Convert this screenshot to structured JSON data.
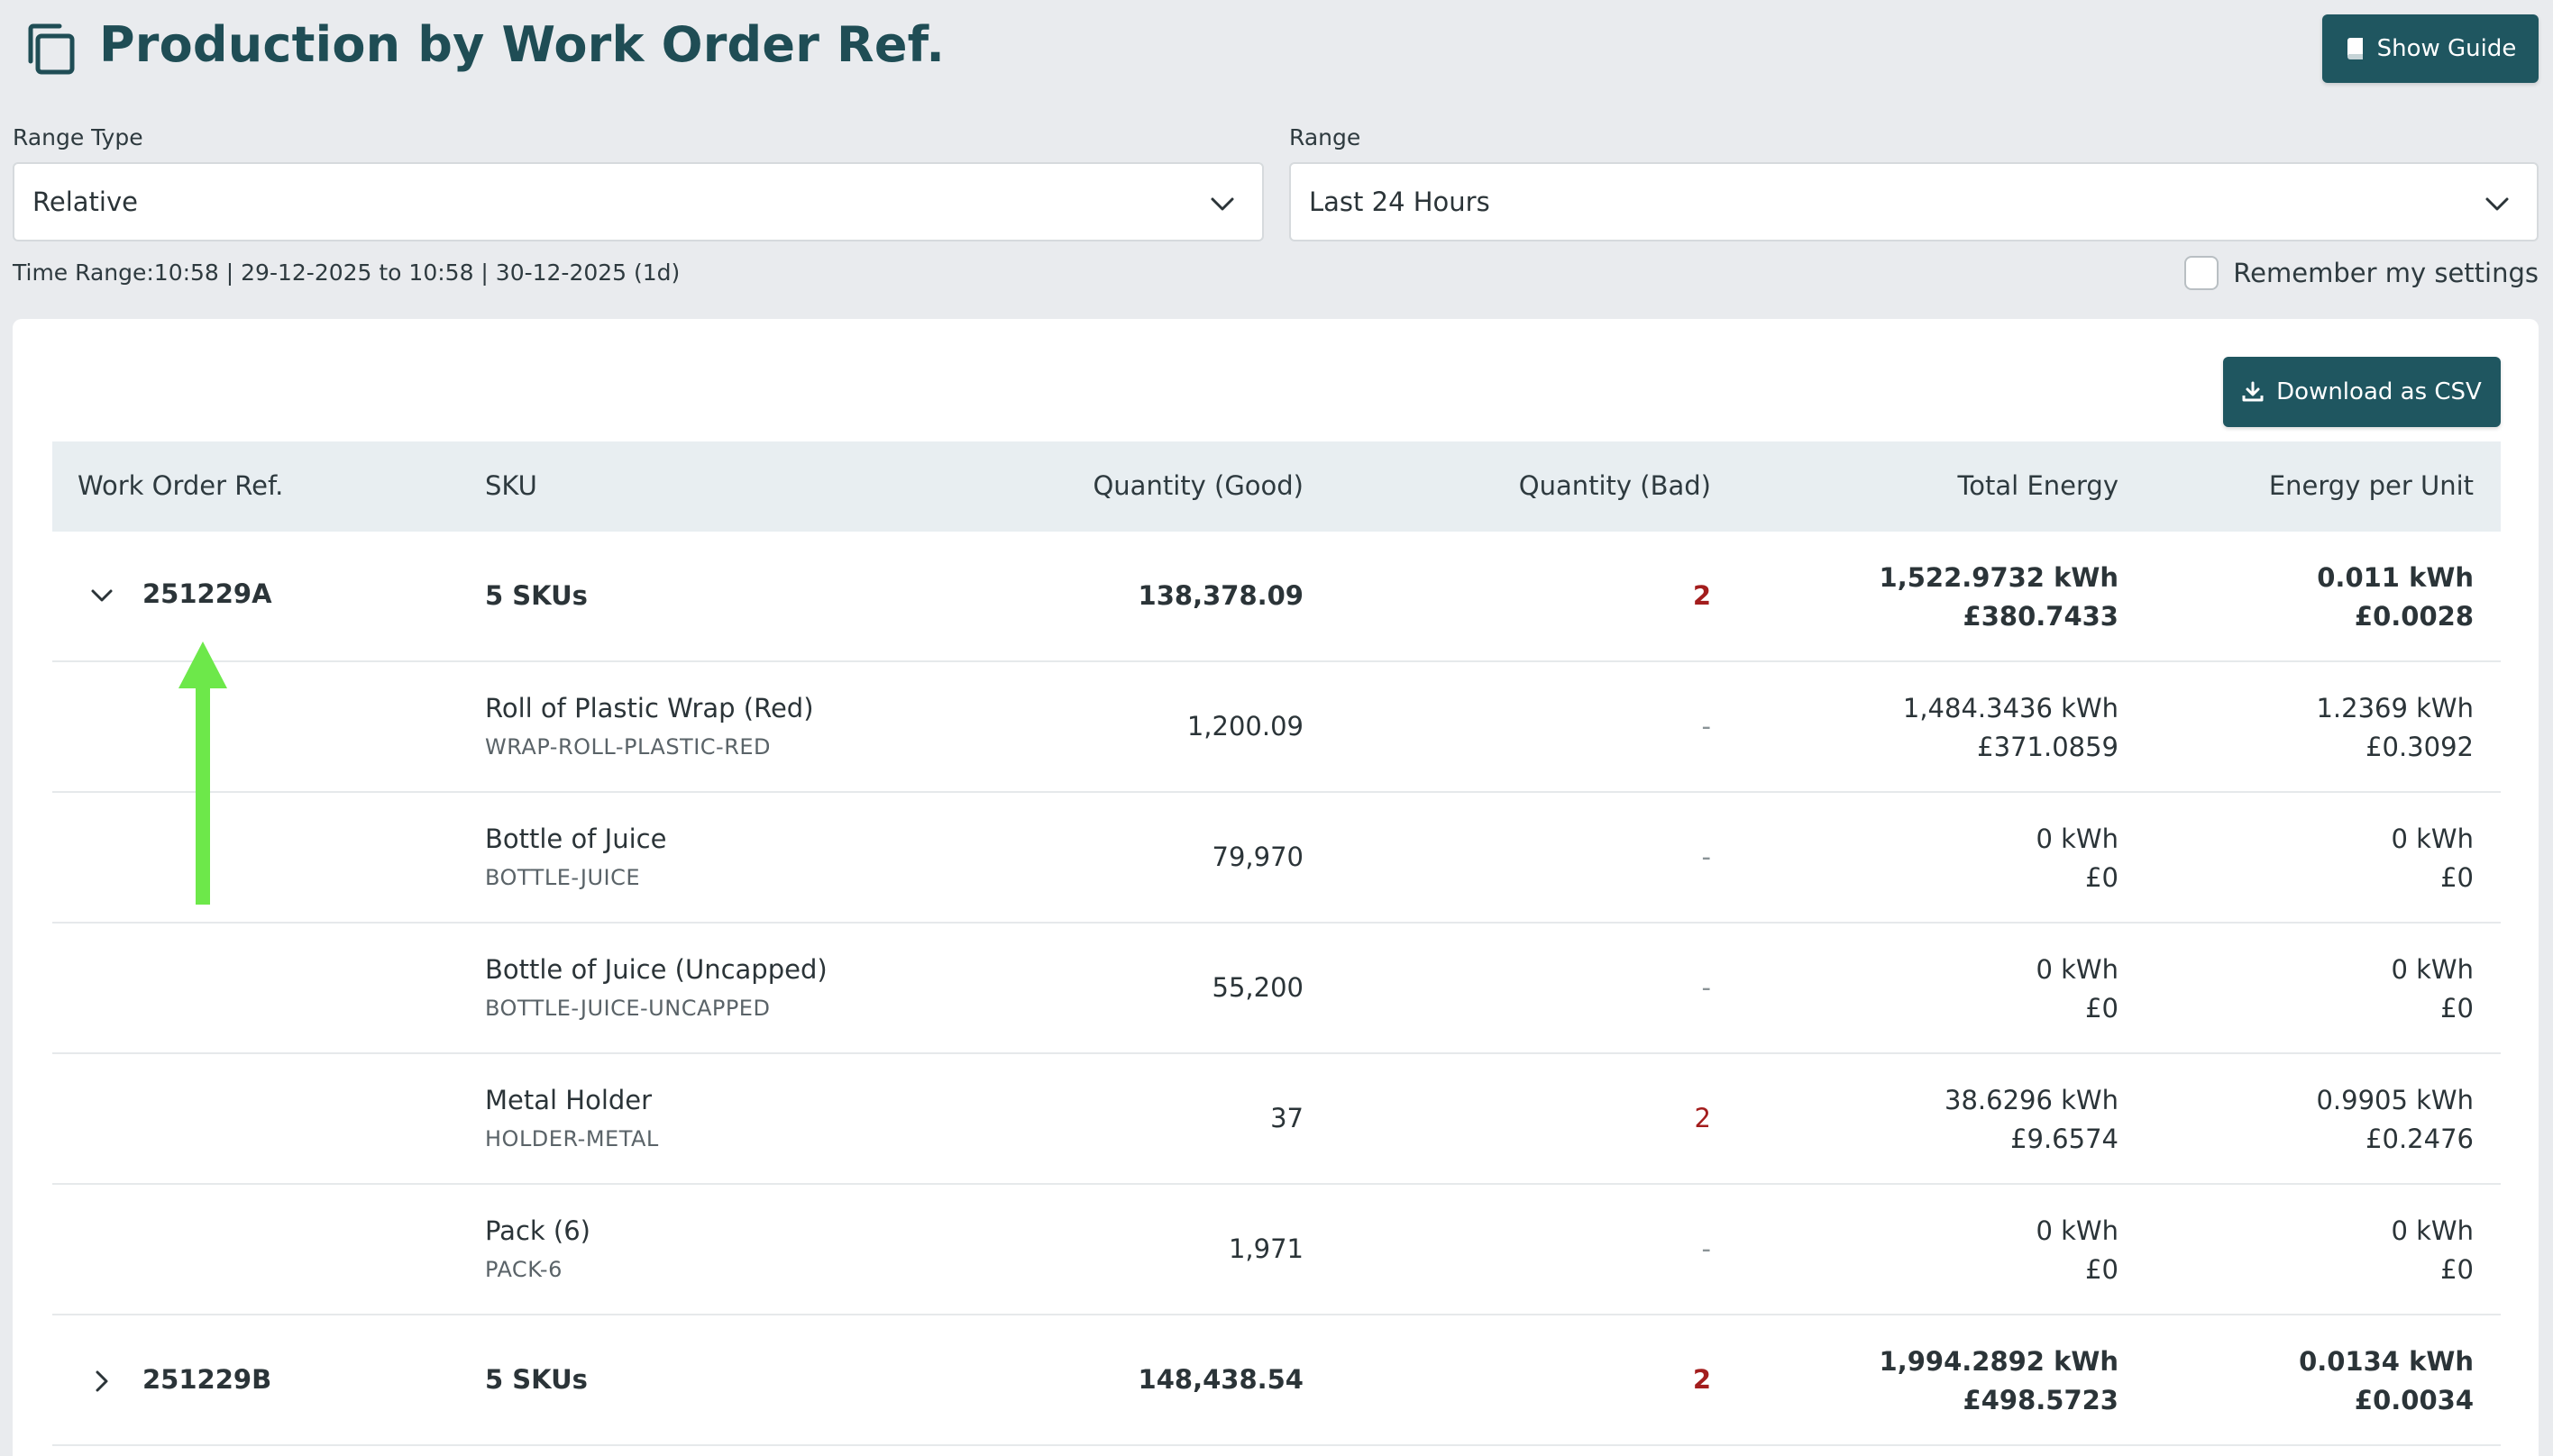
{
  "header": {
    "title": "Production by Work Order Ref.",
    "guide_label": "Show Guide"
  },
  "filters": {
    "range_type_label": "Range Type",
    "range_type_value": "Relative",
    "range_label": "Range",
    "range_value": "Last 24 Hours",
    "time_range": "Time Range:10:58 | 29-12-2025 to 10:58 | 30-12-2025 (1d)",
    "remember_label": "Remember my settings",
    "remember_checked": false
  },
  "toolbar": {
    "csv_label": "Download as CSV"
  },
  "table": {
    "columns": [
      "Work Order Ref.",
      "SKU",
      "Quantity (Good)",
      "Quantity (Bad)",
      "Total Energy",
      "Energy per Unit"
    ],
    "groups": [
      {
        "ref": "251229A",
        "expanded": true,
        "sku": "5 SKUs",
        "qty_good": "138,378.09",
        "qty_bad": "2",
        "energy_kwh": "1,522.9732 kWh",
        "energy_cost": "£380.7433",
        "unit_kwh": "0.011 kWh",
        "unit_cost": "£0.0028",
        "items": [
          {
            "name": "Roll of Plastic Wrap (Red)",
            "code": "WRAP-ROLL-PLASTIC-RED",
            "qty_good": "1,200.09",
            "qty_bad": "-",
            "energy_kwh": "1,484.3436 kWh",
            "energy_cost": "£371.0859",
            "unit_kwh": "1.2369 kWh",
            "unit_cost": "£0.3092"
          },
          {
            "name": "Bottle of Juice",
            "code": "BOTTLE-JUICE",
            "qty_good": "79,970",
            "qty_bad": "-",
            "energy_kwh": "0 kWh",
            "energy_cost": "£0",
            "unit_kwh": "0 kWh",
            "unit_cost": "£0"
          },
          {
            "name": "Bottle of Juice (Uncapped)",
            "code": "BOTTLE-JUICE-UNCAPPED",
            "qty_good": "55,200",
            "qty_bad": "-",
            "energy_kwh": "0 kWh",
            "energy_cost": "£0",
            "unit_kwh": "0 kWh",
            "unit_cost": "£0"
          },
          {
            "name": "Metal Holder",
            "code": "HOLDER-METAL",
            "qty_good": "37",
            "qty_bad": "2",
            "energy_kwh": "38.6296 kWh",
            "energy_cost": "£9.6574",
            "unit_kwh": "0.9905 kWh",
            "unit_cost": "£0.2476"
          },
          {
            "name": "Pack (6)",
            "code": "PACK-6",
            "qty_good": "1,971",
            "qty_bad": "-",
            "energy_kwh": "0 kWh",
            "energy_cost": "£0",
            "unit_kwh": "0 kWh",
            "unit_cost": "£0"
          }
        ]
      },
      {
        "ref": "251229B",
        "expanded": false,
        "sku": "5 SKUs",
        "qty_good": "148,438.54",
        "qty_bad": "2",
        "energy_kwh": "1,994.2892 kWh",
        "energy_cost": "£498.5723",
        "unit_kwh": "0.0134 kWh",
        "unit_cost": "£0.0034"
      }
    ]
  },
  "colors": {
    "accent": "#1f5660",
    "title": "#1f4d55",
    "bad": "#a31d1d",
    "annotation_arrow": "#6de84a"
  },
  "icons": {
    "page": "copy-icon",
    "guide": "book-icon",
    "csv": "download-icon",
    "expanded": "chevron-down-icon",
    "collapsed": "chevron-right-icon"
  }
}
